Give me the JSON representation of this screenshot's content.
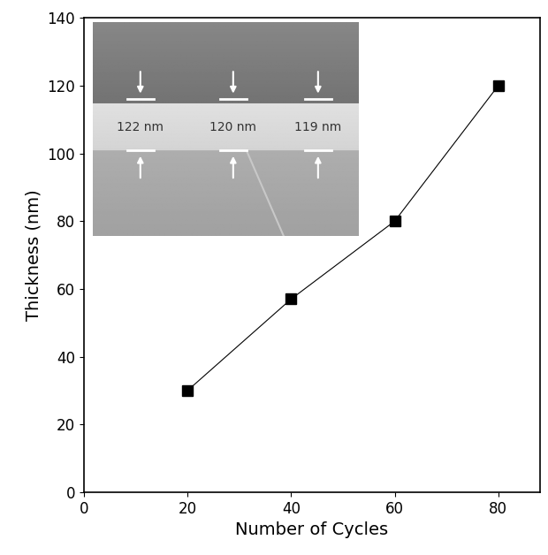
{
  "chart_data": {
    "type": "line",
    "x_label": "Number of Cycles",
    "y_label": "Thickness (nm)",
    "x": [
      20,
      40,
      60,
      80
    ],
    "values": [
      30,
      57,
      80,
      120
    ],
    "color": "#000000",
    "marker": "s",
    "line_style": "solid",
    "xlim": [
      0,
      88
    ],
    "xticks": [
      0,
      20,
      40,
      60,
      80
    ],
    "ylim": [
      0,
      140
    ],
    "yticks": [
      0,
      20,
      40,
      60,
      80,
      100,
      120,
      140
    ],
    "grid": false,
    "annotations": [
      "122 nm",
      "120 nm",
      "119 nm"
    ]
  }
}
